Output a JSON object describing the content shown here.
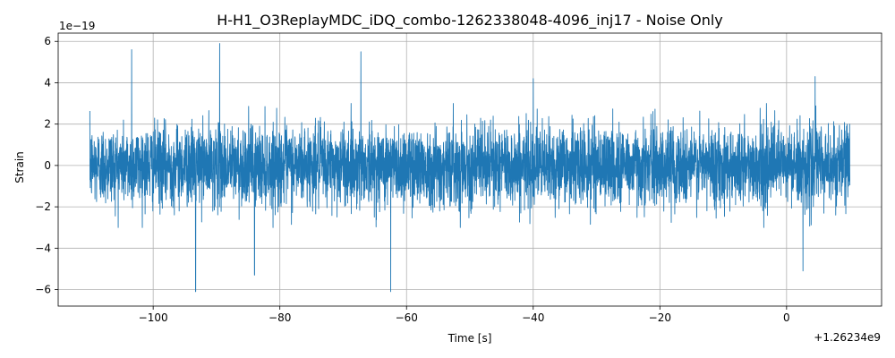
{
  "chart_data": {
    "type": "line",
    "title": "H-H1_O3ReplayMDC_iDQ_combo-1262338048-4096_inj17 - Noise Only",
    "xlabel": "Time [s]",
    "ylabel": "Strain",
    "x_offset_label": "+1.26234e9",
    "y_scale_label": "1e−19",
    "xlim": [
      -115,
      15
    ],
    "ylim": [
      -6.8,
      6.4
    ],
    "x_range_of_data": [
      -110,
      10
    ],
    "xticks": [
      -100,
      -80,
      -60,
      -40,
      -20,
      0
    ],
    "xtick_labels": [
      "−100",
      "−80",
      "−60",
      "−40",
      "−20",
      "0"
    ],
    "yticks": [
      -6,
      -4,
      -2,
      0,
      2,
      4,
      6
    ],
    "ytick_labels": [
      "−6",
      "−4",
      "−2",
      "0",
      "2",
      "4",
      "6"
    ],
    "grid": true,
    "color": "#1f77b4",
    "series": [
      {
        "envelope_peaks": [
          {
            "x": -103.4,
            "y": 5.6
          },
          {
            "x": -89.5,
            "y": 5.9
          },
          {
            "x": -93.3,
            "y": -6.1
          },
          {
            "x": -67.2,
            "y": 5.5
          },
          {
            "x": -62.5,
            "y": -6.1
          },
          {
            "x": -84,
            "y": -5.3
          },
          {
            "x": 2.6,
            "y": -5.1
          },
          {
            "x": 4.5,
            "y": 4.3
          },
          {
            "x": -40,
            "y": 4.2
          }
        ]
      }
    ]
  }
}
